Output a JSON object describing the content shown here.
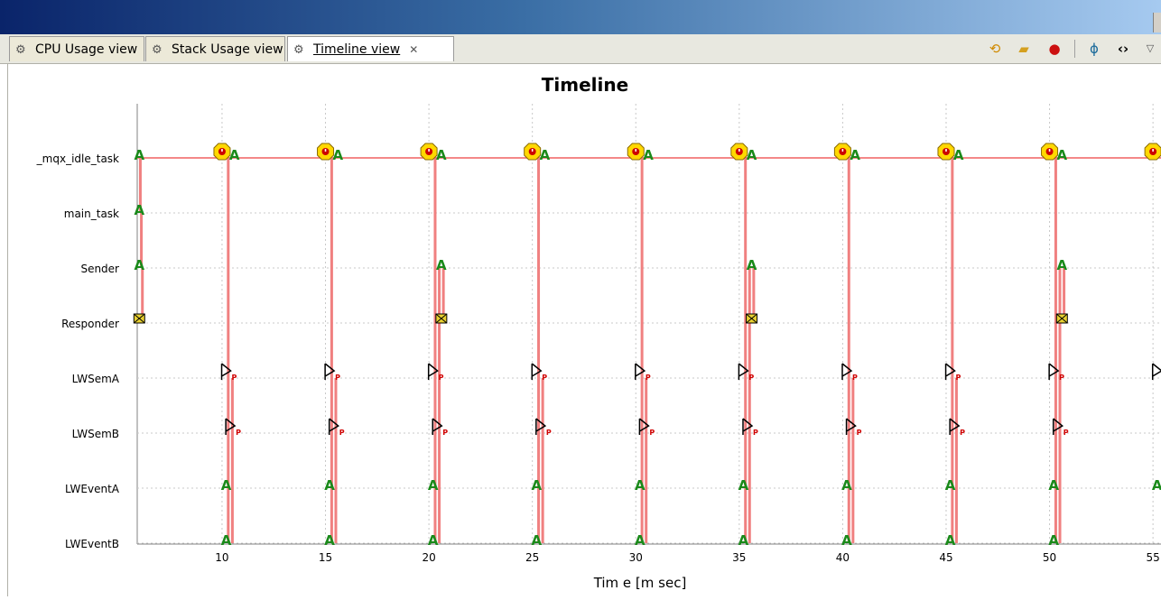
{
  "window": {
    "title": ""
  },
  "tabs": [
    {
      "label": "CPU Usage view",
      "active": false
    },
    {
      "label": "Stack Usage view",
      "active": false
    },
    {
      "label": "Timeline view",
      "active": true,
      "close_icon": "close-icon"
    }
  ],
  "toolbar": {
    "icons": [
      "refresh-icon",
      "open-folder-icon",
      "record-icon",
      "filter-icon",
      "code-icon",
      "view-menu-icon"
    ]
  },
  "chart_data": {
    "type": "timeline",
    "title": "Timeline",
    "xlabel": "Tim e [m sec]",
    "ylabel": "",
    "xlim": [
      5.9,
      55.3
    ],
    "xticks": [
      10,
      15,
      20,
      25,
      30,
      35,
      40,
      45,
      50,
      55
    ],
    "grid": true,
    "rows": [
      "_mqx_idle_task",
      "main_task",
      "Sender",
      "Responder",
      "LWSemA",
      "LWSemB",
      "LWEventA",
      "LWEventB"
    ],
    "markers": [
      {
        "row": "_mqx_idle_task",
        "kind": "A",
        "times": [
          6.0,
          10.6,
          15.6,
          20.6,
          25.6,
          30.6,
          35.6,
          40.6,
          45.6,
          50.6
        ]
      },
      {
        "row": "_mqx_idle_task",
        "kind": "alert",
        "times": [
          10.0,
          15.0,
          20.0,
          25.0,
          30.0,
          35.0,
          40.0,
          45.0,
          50.0,
          55.0
        ]
      },
      {
        "row": "main_task",
        "kind": "A",
        "times": [
          6.0
        ]
      },
      {
        "row": "Sender",
        "kind": "A",
        "times": [
          6.0,
          20.6,
          35.6,
          50.6
        ]
      },
      {
        "row": "Responder",
        "kind": "box",
        "times": [
          6.0,
          20.6,
          35.6,
          50.6
        ]
      },
      {
        "row": "LWSemA",
        "kind": "P",
        "times": [
          10.2,
          15.2,
          20.2,
          25.2,
          30.2,
          35.2,
          40.2,
          45.2,
          50.2,
          55.2
        ]
      },
      {
        "row": "LWSemB",
        "kind": "P",
        "times": [
          10.4,
          15.4,
          20.4,
          25.4,
          30.4,
          35.4,
          40.4,
          45.4,
          50.4
        ]
      },
      {
        "row": "LWEventA",
        "kind": "A",
        "times": [
          10.2,
          15.2,
          20.2,
          25.2,
          30.2,
          35.2,
          40.2,
          45.2,
          50.2,
          55.2
        ]
      },
      {
        "row": "LWEventB",
        "kind": "A",
        "times": [
          10.2,
          15.2,
          20.2,
          25.2,
          30.2,
          35.2,
          40.2,
          45.2,
          50.2
        ]
      }
    ],
    "transitions": [
      {
        "t": 6.05,
        "from": "_mqx_idle_task",
        "to": "main_task"
      },
      {
        "t": 6.1,
        "from": "main_task",
        "to": "Sender"
      },
      {
        "t": 6.15,
        "from": "Sender",
        "to": "Responder"
      },
      {
        "t": 10.3,
        "from": "_mqx_idle_task",
        "to": "LWEventB"
      },
      {
        "t": 10.5,
        "from": "LWSemA",
        "to": "LWEventB"
      },
      {
        "t": 15.3,
        "from": "_mqx_idle_task",
        "to": "LWEventB"
      },
      {
        "t": 15.5,
        "from": "LWSemA",
        "to": "LWEventB"
      },
      {
        "t": 20.3,
        "from": "_mqx_idle_task",
        "to": "LWEventB"
      },
      {
        "t": 20.5,
        "from": "Sender",
        "to": "LWEventB"
      },
      {
        "t": 20.7,
        "from": "Sender",
        "to": "Responder"
      },
      {
        "t": 25.3,
        "from": "_mqx_idle_task",
        "to": "LWEventB"
      },
      {
        "t": 25.5,
        "from": "LWSemA",
        "to": "LWEventB"
      },
      {
        "t": 30.3,
        "from": "_mqx_idle_task",
        "to": "LWEventB"
      },
      {
        "t": 30.5,
        "from": "LWSemA",
        "to": "LWEventB"
      },
      {
        "t": 35.3,
        "from": "_mqx_idle_task",
        "to": "LWEventB"
      },
      {
        "t": 35.5,
        "from": "Sender",
        "to": "LWEventB"
      },
      {
        "t": 35.7,
        "from": "Sender",
        "to": "Responder"
      },
      {
        "t": 40.3,
        "from": "_mqx_idle_task",
        "to": "LWEventB"
      },
      {
        "t": 40.5,
        "from": "LWSemA",
        "to": "LWEventB"
      },
      {
        "t": 45.3,
        "from": "_mqx_idle_task",
        "to": "LWEventB"
      },
      {
        "t": 45.5,
        "from": "LWSemA",
        "to": "LWEventB"
      },
      {
        "t": 50.3,
        "from": "_mqx_idle_task",
        "to": "LWEventB"
      },
      {
        "t": 50.5,
        "from": "Sender",
        "to": "LWEventB"
      },
      {
        "t": 50.7,
        "from": "Sender",
        "to": "Responder"
      }
    ],
    "colors": {
      "activity": "#f08080",
      "idle_line": "#f06060",
      "grid": "#c8c8c8",
      "marker_A": "#1a8a1a",
      "alert": "#ffd800"
    }
  }
}
